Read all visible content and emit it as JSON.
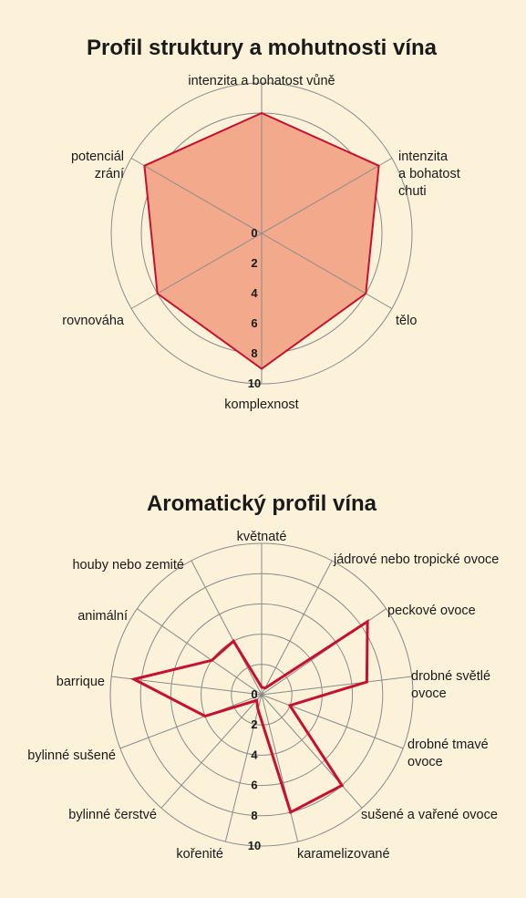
{
  "chart_data": [
    {
      "type": "radar",
      "title": "Profil struktury a mohutnosti vína",
      "axes": [
        "intenzita a bohatost vůně",
        "intenzita a bohatost chuti",
        "tělo",
        "komplexnost",
        "rovnováha",
        "potenciál zrání"
      ],
      "values": [
        8,
        9,
        8,
        9,
        8,
        9
      ],
      "rlim": [
        0,
        10
      ],
      "ticks": [
        "0",
        "2",
        "4",
        "6",
        "8",
        "10"
      ],
      "fill": true,
      "colors": {
        "line": "#c8102e",
        "fill": "#f2a98c",
        "grid": "#8a8a8a"
      }
    },
    {
      "type": "radar",
      "title": "Aromatický profil vína",
      "axes": [
        "květnaté",
        "jádrové nebo tropické ovoce",
        "peckové ovoce",
        "drobné světlé ovoce",
        "drobné tmavé ovoce",
        "sušené a vařené ovoce",
        "karamelizované",
        "kořenité",
        "bylinné čerstvé",
        "bylinné sušené",
        "barrique",
        "animální",
        "houby nebo zemité"
      ],
      "values": [
        0.5,
        0.5,
        8.5,
        7,
        2,
        8,
        8,
        1,
        0.5,
        4,
        8.5,
        4,
        4
      ],
      "rlim": [
        0,
        10
      ],
      "ticks": [
        "0",
        "2",
        "4",
        "6",
        "8",
        "10"
      ],
      "fill": false,
      "colors": {
        "line": "#c8102e",
        "fill": "none",
        "grid": "#8a8a8a"
      }
    }
  ]
}
